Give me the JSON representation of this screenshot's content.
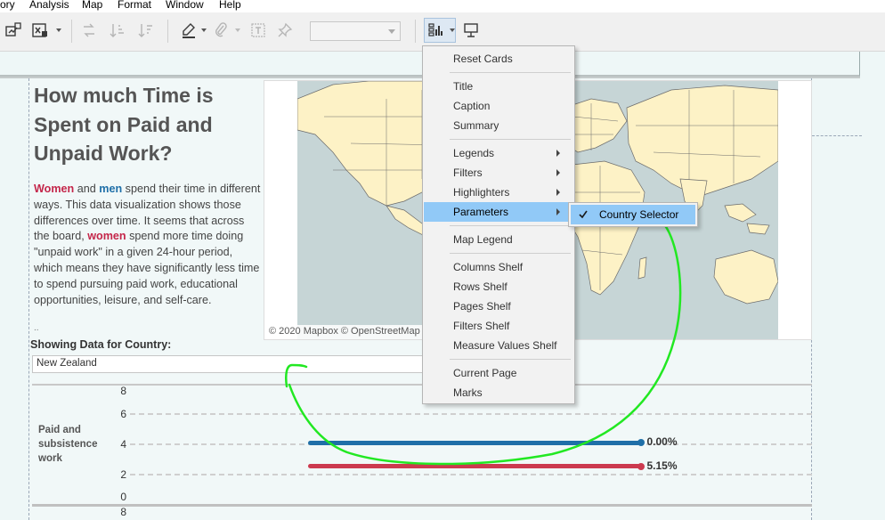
{
  "menubar": {
    "items": [
      "ory",
      "Analysis",
      "Map",
      "Format",
      "Window",
      "Help"
    ]
  },
  "toolbar": {
    "icons": [
      "new-worksheet-icon",
      "clear-sheet-icon",
      "swap-icon",
      "sort-ascending-icon",
      "sort-descending-icon",
      "highlight-icon",
      "attach-icon",
      "text-label-icon",
      "pin-icon",
      "show-cards-icon",
      "presentation-icon"
    ],
    "combo_value": ""
  },
  "dashboard": {
    "title": "How much Time is Spent on Paid and Unpaid Work?",
    "desc_parts": {
      "p1": "Women",
      "p2": " and ",
      "p3": "men",
      "p4": " spend their time in different ways. This data visualization shows those differences over time. It seems that across the board, ",
      "p5": "women",
      "p6": " spend more time doing \"unpaid work\" in a given 24-hour period, which means they have significantly less time to spend pursuing paid work, educational opportunities, leisure, and self-care."
    },
    "desc_overflow": "..",
    "map_attribution": "© 2020 Mapbox © OpenStreetMap",
    "country_label": "Showing Data for Country:",
    "country_value": "New Zealand"
  },
  "chart_data": {
    "type": "bar",
    "categories": [
      "Paid and subsistence work"
    ],
    "series": [
      {
        "name": "",
        "start": 2.15,
        "end": 3.7,
        "y": 4.1,
        "label": "0.00%",
        "color": "#1f6fa8"
      },
      {
        "name": "",
        "start": 2.15,
        "end": 3.7,
        "y": 2.3,
        "label": "5.15%",
        "color": "#cc3a4f"
      }
    ],
    "yticks": [
      "8",
      "6",
      "4",
      "2",
      "0"
    ],
    "second_panel_tick": "8",
    "ylim": [
      0,
      8
    ]
  },
  "dropdown": {
    "items": [
      {
        "label": "Reset Cards",
        "sub": false,
        "hl": false
      },
      {
        "sep": true
      },
      {
        "label": "Title",
        "sub": false,
        "hl": false
      },
      {
        "label": "Caption",
        "sub": false,
        "hl": false
      },
      {
        "label": "Summary",
        "sub": false,
        "hl": false
      },
      {
        "sep": true
      },
      {
        "label": "Legends",
        "sub": true,
        "hl": false
      },
      {
        "label": "Filters",
        "sub": true,
        "hl": false
      },
      {
        "label": "Highlighters",
        "sub": true,
        "hl": false
      },
      {
        "label": "Parameters",
        "sub": true,
        "hl": true
      },
      {
        "sep": true
      },
      {
        "label": "Map Legend",
        "sub": false,
        "hl": false
      },
      {
        "sep": true
      },
      {
        "label": "Columns Shelf",
        "sub": false,
        "hl": false
      },
      {
        "label": "Rows Shelf",
        "sub": false,
        "hl": false
      },
      {
        "label": "Pages Shelf",
        "sub": false,
        "hl": false
      },
      {
        "label": "Filters Shelf",
        "sub": false,
        "hl": false
      },
      {
        "label": "Measure Values Shelf",
        "sub": false,
        "hl": false
      },
      {
        "sep": true
      },
      {
        "label": "Current Page",
        "sub": false,
        "hl": false
      },
      {
        "label": "Marks",
        "sub": false,
        "hl": false
      }
    ],
    "submenu_item": "Country Selector",
    "submenu_checked": true
  },
  "colors": {
    "women": "#c4264a",
    "men": "#1f6fa8",
    "highlight": "#91c9f7",
    "annotation": "#22e822"
  }
}
